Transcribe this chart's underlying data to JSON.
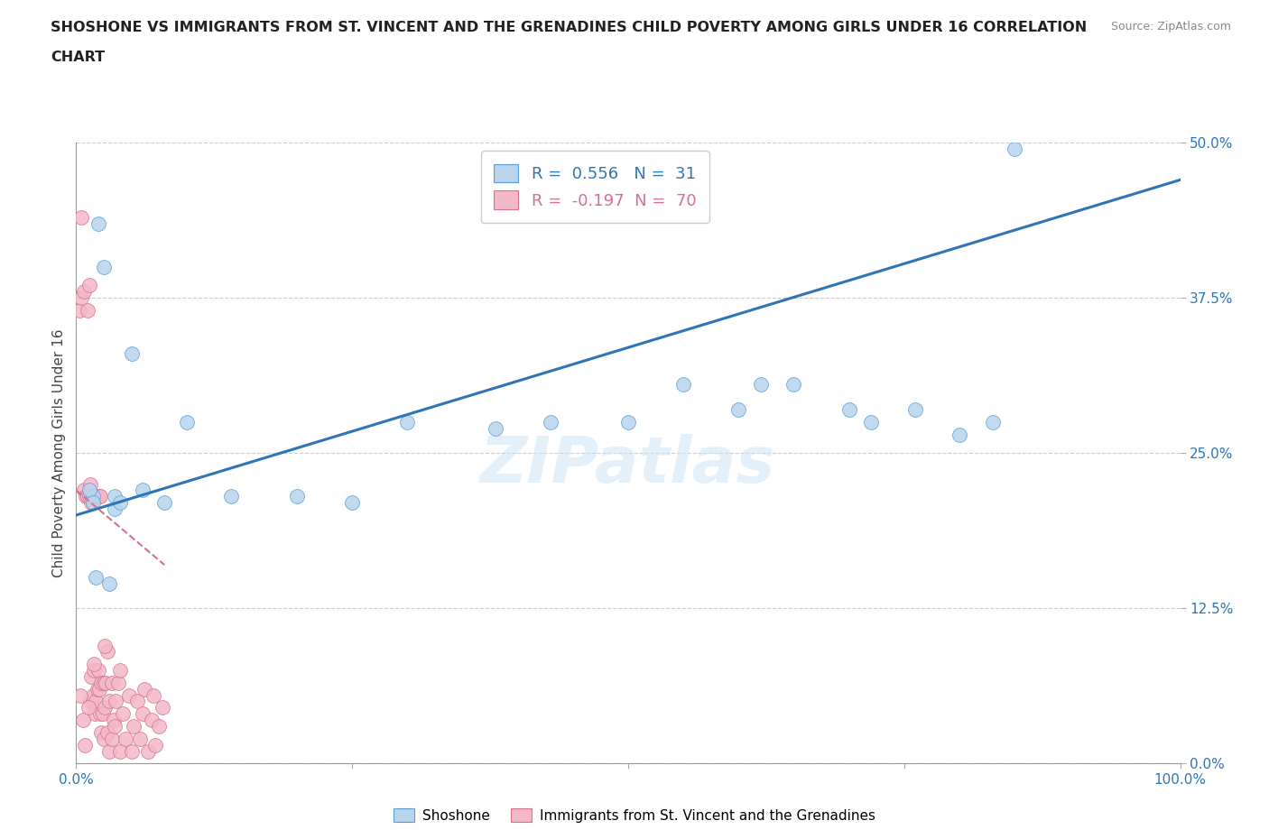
{
  "title_line1": "SHOSHONE VS IMMIGRANTS FROM ST. VINCENT AND THE GRENADINES CHILD POVERTY AMONG GIRLS UNDER 16 CORRELATION",
  "title_line2": "CHART",
  "source_text": "Source: ZipAtlas.com",
  "ylabel": "Child Poverty Among Girls Under 16",
  "xlim": [
    0,
    100
  ],
  "ylim": [
    0,
    50
  ],
  "xticks": [
    0,
    25,
    50,
    75,
    100
  ],
  "xticklabels": [
    "0.0%",
    "",
    "",
    "",
    "100.0%"
  ],
  "yticks": [
    0,
    12.5,
    25.0,
    37.5,
    50.0
  ],
  "yticklabels": [
    "0.0%",
    "12.5%",
    "25.0%",
    "37.5%",
    "50.0%"
  ],
  "watermark": "ZIPatlas",
  "blue_R": "0.556",
  "blue_N": "31",
  "pink_R": "-0.197",
  "pink_N": "70",
  "blue_fill": "#b8d4ed",
  "blue_edge": "#5b9bd5",
  "blue_line": "#2e75b6",
  "pink_fill": "#f4b8c8",
  "pink_edge": "#d47090",
  "pink_line": "#d47090",
  "legend_blue_label": "Shoshone",
  "legend_pink_label": "Immigrants from St. Vincent and the Grenadines",
  "blue_trend_x0": 0,
  "blue_trend_y0": 20.0,
  "blue_trend_x1": 100,
  "blue_trend_y1": 47.0,
  "pink_trend_x0": 0,
  "pink_trend_y0": 22.0,
  "pink_trend_x1": 8,
  "pink_trend_y1": 16.0,
  "blue_x": [
    2.0,
    2.5,
    3.5,
    1.5,
    1.8,
    3.0,
    5.0,
    6.0,
    8.0,
    10.0,
    14.0,
    20.0,
    25.0,
    30.0,
    38.0,
    43.0,
    50.0,
    55.0,
    60.0,
    62.0,
    65.0,
    70.0,
    72.0,
    76.0,
    80.0,
    83.0,
    85.0,
    1.2,
    1.5,
    3.5,
    4.0
  ],
  "blue_y": [
    43.5,
    40.0,
    21.5,
    21.5,
    15.0,
    14.5,
    33.0,
    22.0,
    21.0,
    27.5,
    21.5,
    21.5,
    21.0,
    27.5,
    27.0,
    27.5,
    27.5,
    30.5,
    28.5,
    30.5,
    30.5,
    28.5,
    27.5,
    28.5,
    26.5,
    27.5,
    49.5,
    22.0,
    21.0,
    20.5,
    21.0
  ],
  "pink_x": [
    0.3,
    0.5,
    0.5,
    0.7,
    0.7,
    0.9,
    1.0,
    1.0,
    1.2,
    1.2,
    1.3,
    1.3,
    1.4,
    1.4,
    1.5,
    1.5,
    1.6,
    1.6,
    1.7,
    1.7,
    1.8,
    1.8,
    1.9,
    1.9,
    2.0,
    2.0,
    2.1,
    2.1,
    2.2,
    2.2,
    2.3,
    2.3,
    2.4,
    2.5,
    2.5,
    2.6,
    2.7,
    2.8,
    2.8,
    3.0,
    3.0,
    3.2,
    3.2,
    3.4,
    3.5,
    3.6,
    3.8,
    4.0,
    4.0,
    4.2,
    4.5,
    4.8,
    5.0,
    5.2,
    5.5,
    5.8,
    6.0,
    6.2,
    6.5,
    6.8,
    7.0,
    7.2,
    7.5,
    7.8,
    0.4,
    0.6,
    0.8,
    1.1,
    1.6,
    2.6
  ],
  "pink_y": [
    36.5,
    44.0,
    37.5,
    38.0,
    22.0,
    21.5,
    36.5,
    21.5,
    21.5,
    38.5,
    22.5,
    5.0,
    21.0,
    7.0,
    21.5,
    5.5,
    21.5,
    7.5,
    21.5,
    4.0,
    21.5,
    5.0,
    21.5,
    6.0,
    21.5,
    7.5,
    21.5,
    6.0,
    21.5,
    4.0,
    6.5,
    2.5,
    4.0,
    6.5,
    2.0,
    4.5,
    6.5,
    9.0,
    2.5,
    5.0,
    1.0,
    6.5,
    2.0,
    3.5,
    3.0,
    5.0,
    6.5,
    7.5,
    1.0,
    4.0,
    2.0,
    5.5,
    1.0,
    3.0,
    5.0,
    2.0,
    4.0,
    6.0,
    1.0,
    3.5,
    5.5,
    1.5,
    3.0,
    4.5,
    5.5,
    3.5,
    1.5,
    4.5,
    8.0,
    9.5
  ]
}
